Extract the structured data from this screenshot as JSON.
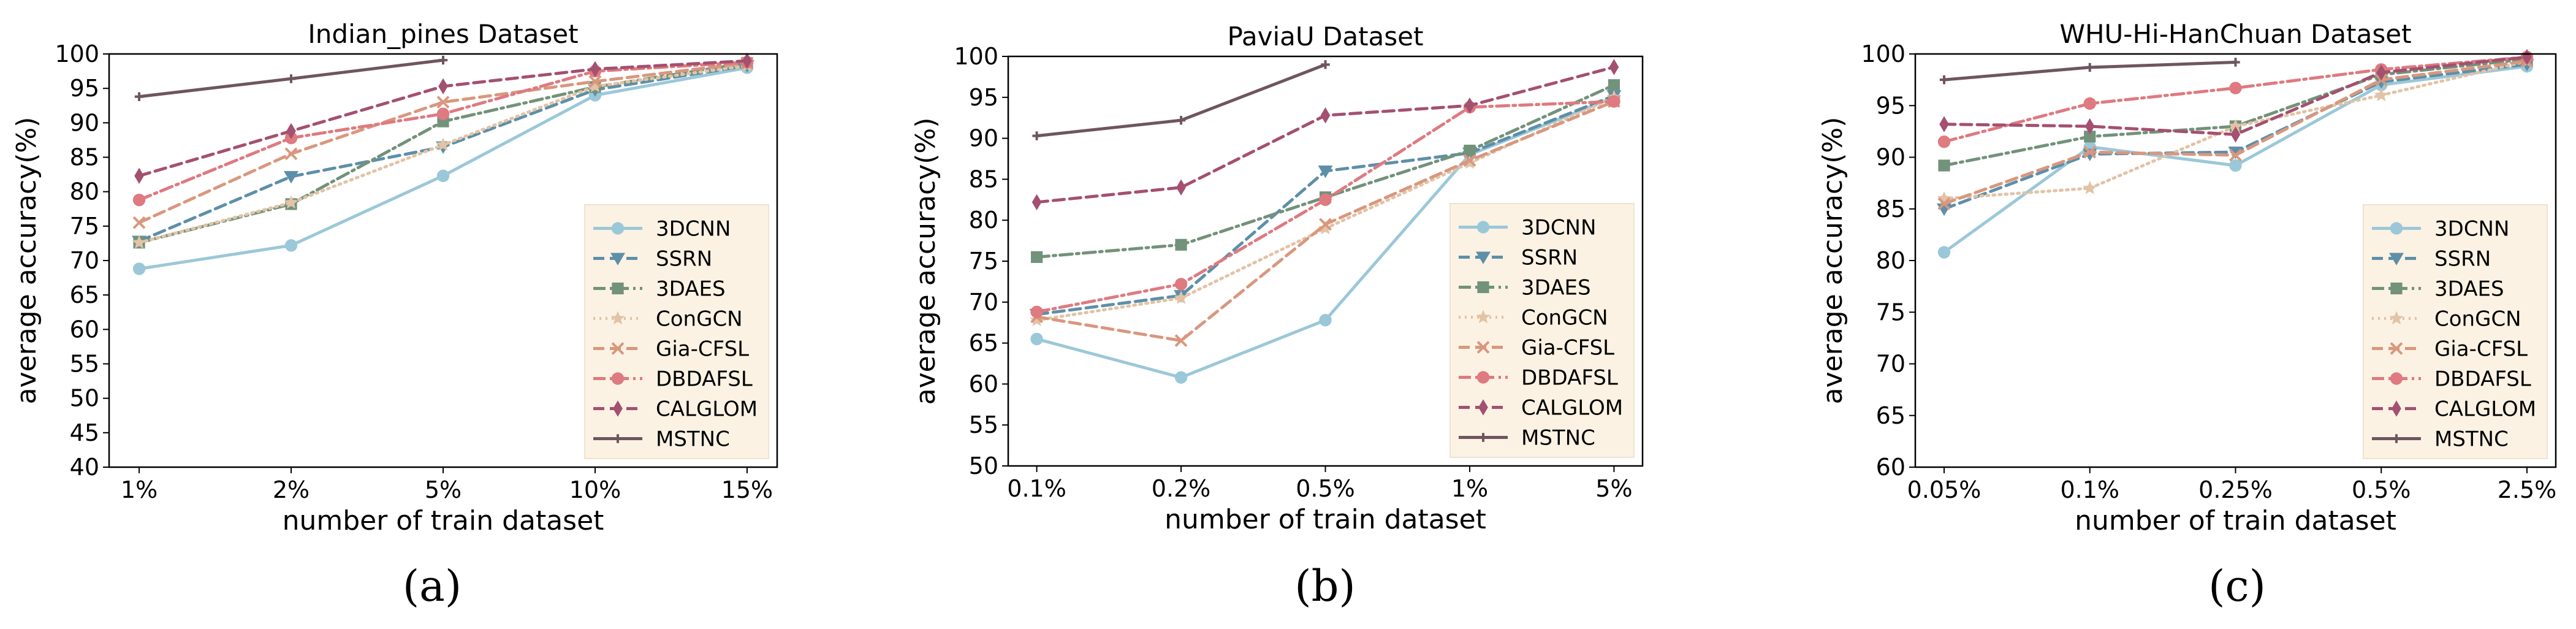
{
  "styles": {
    "3DCNN": {
      "color": "#9bc8d8",
      "dash": "",
      "marker": "circle"
    },
    "SSRN": {
      "color": "#5d8fa8",
      "dash": "18,9",
      "marker": "tri_down"
    },
    "3DAES": {
      "color": "#72927a",
      "dash": "20,7,4,7",
      "marker": "square"
    },
    "ConGCN": {
      "color": "#e2c3a6",
      "dash": "3,7",
      "marker": "star"
    },
    "Gia-CFSL": {
      "color": "#d9977e",
      "dash": "18,9",
      "marker": "x"
    },
    "DBDAFSL": {
      "color": "#de7a80",
      "dash": "20,7,4,7",
      "marker": "circle"
    },
    "CALGLOM": {
      "color": "#a45070",
      "dash": "18,9",
      "marker": "diamond"
    },
    "MSTNC": {
      "color": "#6e5560",
      "dash": "",
      "marker": "plus"
    }
  },
  "legend_bg": "#fbf2e3",
  "chart_data": [
    {
      "type": "line",
      "panel_label": "(a)",
      "title": "Indian_pines Dataset",
      "xlabel": "number of train dataset",
      "ylabel": "average accuracy(%)",
      "categories": [
        "1%",
        "2%",
        "5%",
        "10%",
        "15%"
      ],
      "ylim": [
        40,
        100
      ],
      "yticks": [
        40,
        45,
        50,
        55,
        60,
        65,
        70,
        75,
        80,
        85,
        90,
        95,
        100
      ],
      "legend": "lower-right",
      "series": [
        {
          "name": "3DCNN",
          "values": [
            68.8,
            72.2,
            82.3,
            94.0,
            98.0
          ]
        },
        {
          "name": "SSRN",
          "values": [
            72.8,
            82.2,
            86.5,
            94.8,
            98.3
          ]
        },
        {
          "name": "3DAES",
          "values": [
            72.6,
            78.2,
            90.2,
            95.2,
            98.7
          ]
        },
        {
          "name": "ConGCN",
          "values": [
            72.6,
            78.4,
            86.8,
            95.3,
            98.3
          ]
        },
        {
          "name": "Gia-CFSL",
          "values": [
            75.5,
            85.5,
            93.0,
            96.0,
            98.7
          ]
        },
        {
          "name": "DBDAFSL",
          "values": [
            78.8,
            87.8,
            91.3,
            97.5,
            98.8
          ]
        },
        {
          "name": "CALGLOM",
          "values": [
            82.3,
            88.8,
            95.3,
            97.8,
            99.0
          ]
        },
        {
          "name": "MSTNC",
          "values": [
            93.8,
            96.4,
            99.1,
            null,
            null
          ]
        }
      ]
    },
    {
      "type": "line",
      "panel_label": "(b)",
      "title": "PaviaU Dataset",
      "xlabel": "number of train dataset",
      "ylabel": "average accuracy(%)",
      "categories": [
        "0.1%",
        "0.2%",
        "0.5%",
        "1%",
        "5%"
      ],
      "ylim": [
        50,
        100
      ],
      "yticks": [
        50,
        55,
        60,
        65,
        70,
        75,
        80,
        85,
        90,
        95,
        100
      ],
      "legend": "lower-right",
      "series": [
        {
          "name": "3DCNN",
          "values": [
            65.5,
            60.8,
            67.8,
            88.0,
            95.0
          ]
        },
        {
          "name": "SSRN",
          "values": [
            68.5,
            70.8,
            86.0,
            88.2,
            95.2
          ]
        },
        {
          "name": "3DAES",
          "values": [
            75.5,
            77.0,
            82.8,
            88.5,
            96.5
          ]
        },
        {
          "name": "ConGCN",
          "values": [
            67.8,
            70.5,
            79.0,
            87.0,
            95.0
          ]
        },
        {
          "name": "Gia-CFSL",
          "values": [
            68.2,
            65.3,
            79.5,
            87.3,
            94.5
          ]
        },
        {
          "name": "DBDAFSL",
          "values": [
            68.8,
            72.2,
            82.5,
            93.8,
            94.5
          ]
        },
        {
          "name": "CALGLOM",
          "values": [
            82.2,
            84.0,
            92.8,
            94.0,
            98.7
          ]
        },
        {
          "name": "MSTNC",
          "values": [
            90.3,
            92.2,
            99.0,
            null,
            null
          ]
        }
      ]
    },
    {
      "type": "line",
      "panel_label": "(c)",
      "title": "WHU-Hi-HanChuan Dataset",
      "xlabel": "number of train dataset",
      "ylabel": "average accuracy(%)",
      "categories": [
        "0.05%",
        "0.1%",
        "0.25%",
        "0.5%",
        "2.5%"
      ],
      "ylim": [
        60,
        100
      ],
      "yticks": [
        60,
        65,
        70,
        75,
        80,
        85,
        90,
        95,
        100
      ],
      "legend": "lower-right",
      "series": [
        {
          "name": "3DCNN",
          "values": [
            80.8,
            91.0,
            89.2,
            97.0,
            98.8
          ]
        },
        {
          "name": "SSRN",
          "values": [
            85.0,
            90.3,
            90.5,
            97.3,
            99.0
          ]
        },
        {
          "name": "3DAES",
          "values": [
            89.2,
            92.0,
            93.0,
            98.0,
            99.5
          ]
        },
        {
          "name": "ConGCN",
          "values": [
            86.0,
            87.0,
            93.0,
            96.0,
            99.3
          ]
        },
        {
          "name": "Gia-CFSL",
          "values": [
            85.5,
            90.5,
            90.2,
            97.5,
            99.3
          ]
        },
        {
          "name": "DBDAFSL",
          "values": [
            91.5,
            95.2,
            96.7,
            98.5,
            99.7
          ]
        },
        {
          "name": "CALGLOM",
          "values": [
            93.2,
            93.0,
            92.2,
            98.2,
            99.7
          ]
        },
        {
          "name": "MSTNC",
          "values": [
            97.5,
            98.7,
            99.2,
            null,
            null
          ]
        }
      ]
    }
  ]
}
